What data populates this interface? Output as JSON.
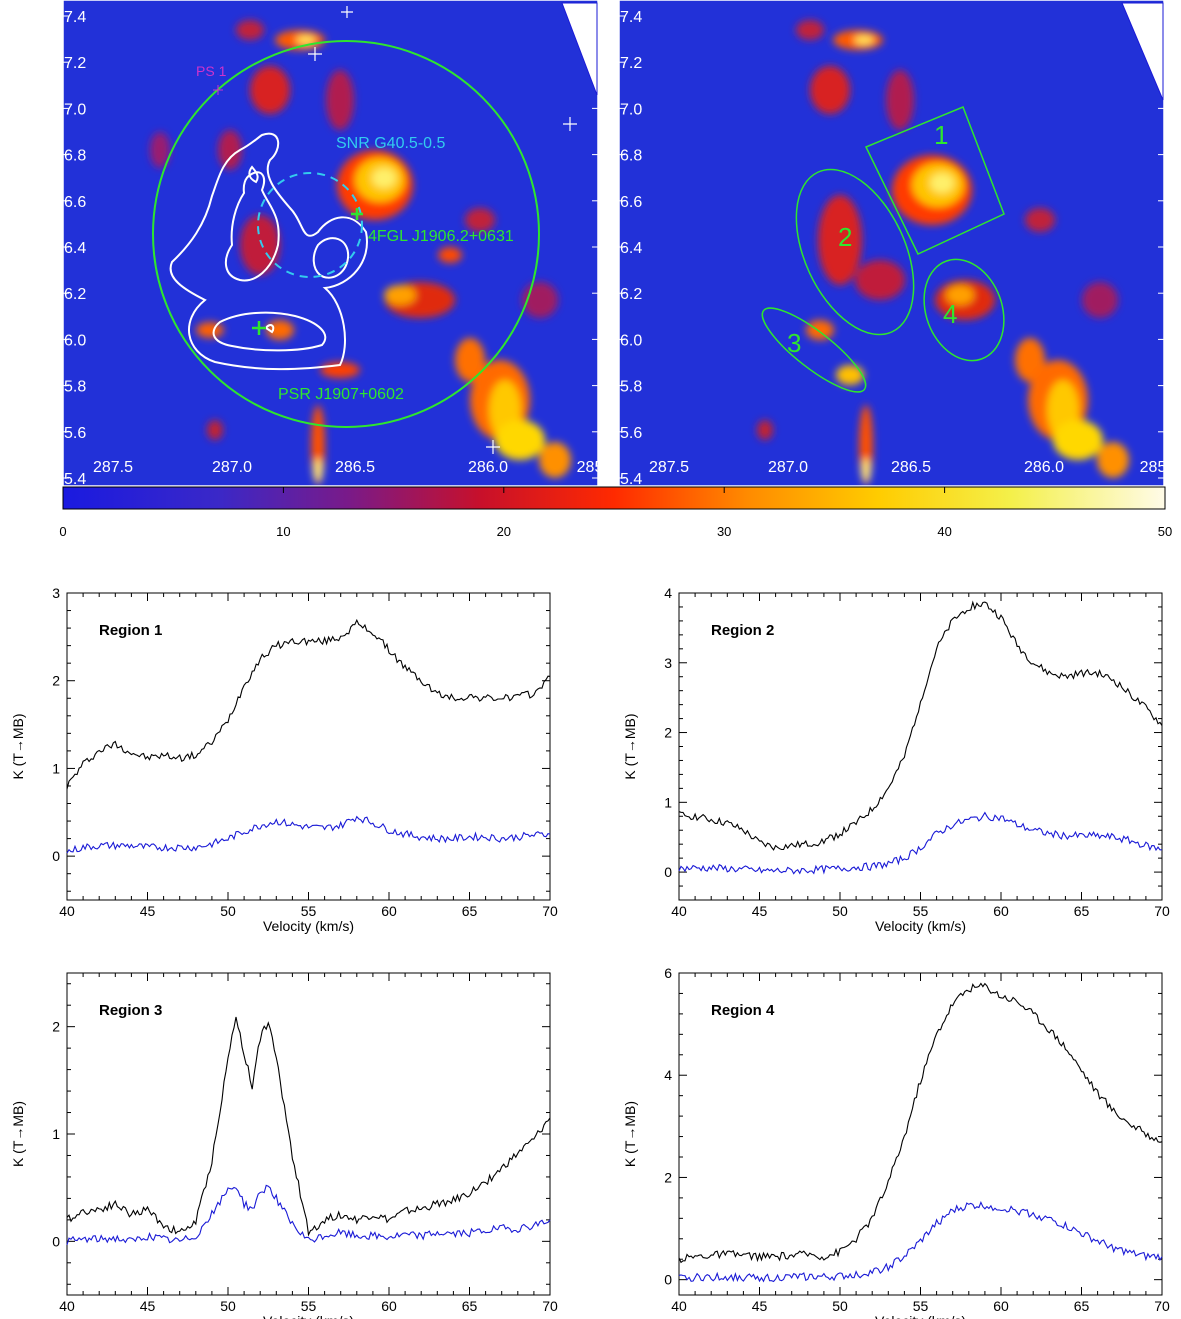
{
  "colors": {
    "map_background": "#2231d8",
    "green_annotation": "#2ee62e",
    "cyan_annotation": "#33ccee",
    "magenta_annotation": "#cc33cc",
    "contour": "#ffffff",
    "line_black": "#000000",
    "line_blue": "#1a1ad6"
  },
  "maps": {
    "left": {
      "y_ticks": [
        "7.4",
        "7.2",
        "7.0",
        "6.8",
        "6.6",
        "6.4",
        "6.2",
        "6.0",
        "5.8",
        "5.6",
        "5.4"
      ],
      "x_ticks": [
        "287.5",
        "287.0",
        "286.5",
        "286.0",
        "285"
      ],
      "labels": {
        "ps1": "PS 1",
        "snr": "SNR G40.5-0.5",
        "fgl": "4FGL J1906.2+0631",
        "psr": "PSR J1907+0602"
      }
    },
    "right": {
      "y_ticks": [
        "7.4",
        "7.2",
        "7.0",
        "6.8",
        "6.6",
        "6.4",
        "6.2",
        "6.0",
        "5.8",
        "5.6",
        "5.4"
      ],
      "x_ticks": [
        "287.5",
        "287.0",
        "286.5",
        "286.0",
        "285"
      ],
      "region_labels": [
        "1",
        "2",
        "3",
        "4"
      ]
    }
  },
  "colorbar": {
    "ticks": [
      "0",
      "10",
      "20",
      "30",
      "40",
      "50"
    ],
    "range": [
      0,
      50
    ]
  },
  "chart_data": [
    {
      "type": "line",
      "title": "Region 1",
      "xlabel": "Velocity (km/s)",
      "ylabel": "K (T→MB)",
      "xlim": [
        40,
        70
      ],
      "ylim": [
        -0.5,
        3
      ],
      "x_ticks": [
        "40",
        "45",
        "50",
        "55",
        "60",
        "65",
        "70"
      ],
      "y_ticks": [
        "0",
        "1",
        "2",
        "3"
      ],
      "series": [
        {
          "color": "#000000",
          "x": [
            40,
            41,
            42,
            43,
            44,
            45,
            46,
            47,
            48,
            49,
            50,
            51,
            52,
            53,
            54,
            55,
            56,
            57,
            58,
            59,
            60,
            61,
            62,
            63,
            64,
            65,
            66,
            67,
            68,
            69,
            70
          ],
          "y": [
            0.8,
            1.05,
            1.2,
            1.28,
            1.18,
            1.12,
            1.15,
            1.12,
            1.15,
            1.3,
            1.55,
            1.95,
            2.25,
            2.4,
            2.45,
            2.45,
            2.45,
            2.5,
            2.65,
            2.55,
            2.35,
            2.15,
            2.0,
            1.85,
            1.8,
            1.82,
            1.8,
            1.8,
            1.82,
            1.85,
            2.05
          ]
        },
        {
          "color": "#1a1ad6",
          "x": [
            40,
            41,
            42,
            43,
            44,
            45,
            46,
            47,
            48,
            49,
            50,
            51,
            52,
            53,
            54,
            55,
            56,
            57,
            58,
            59,
            60,
            61,
            62,
            63,
            64,
            65,
            66,
            67,
            68,
            69,
            70
          ],
          "y": [
            0.05,
            0.1,
            0.12,
            0.12,
            0.12,
            0.1,
            0.1,
            0.1,
            0.1,
            0.14,
            0.2,
            0.28,
            0.35,
            0.4,
            0.36,
            0.33,
            0.32,
            0.35,
            0.45,
            0.38,
            0.3,
            0.25,
            0.22,
            0.2,
            0.2,
            0.22,
            0.22,
            0.2,
            0.22,
            0.24,
            0.25
          ]
        }
      ]
    },
    {
      "type": "line",
      "title": "Region 2",
      "xlabel": "Velocity (km/s)",
      "ylabel": "K (T→MB)",
      "xlim": [
        40,
        70
      ],
      "ylim": [
        -0.4,
        4
      ],
      "x_ticks": [
        "40",
        "45",
        "50",
        "55",
        "60",
        "65",
        "70"
      ],
      "y_ticks": [
        "0",
        "1",
        "2",
        "3",
        "4"
      ],
      "series": [
        {
          "color": "#000000",
          "x": [
            40,
            41,
            42,
            43,
            44,
            45,
            46,
            47,
            48,
            49,
            50,
            51,
            52,
            53,
            54,
            55,
            56,
            57,
            58,
            59,
            60,
            61,
            62,
            63,
            64,
            65,
            66,
            67,
            68,
            69,
            70
          ],
          "y": [
            0.82,
            0.8,
            0.75,
            0.7,
            0.6,
            0.42,
            0.35,
            0.38,
            0.4,
            0.45,
            0.55,
            0.7,
            0.9,
            1.2,
            1.65,
            2.45,
            3.2,
            3.6,
            3.8,
            3.85,
            3.65,
            3.25,
            3.0,
            2.85,
            2.8,
            2.85,
            2.85,
            2.75,
            2.55,
            2.35,
            2.1
          ]
        },
        {
          "color": "#1a1ad6",
          "x": [
            40,
            41,
            42,
            43,
            44,
            45,
            46,
            47,
            48,
            49,
            50,
            51,
            52,
            53,
            54,
            55,
            56,
            57,
            58,
            59,
            60,
            61,
            62,
            63,
            64,
            65,
            66,
            67,
            68,
            69,
            70
          ],
          "y": [
            0.05,
            0.06,
            0.06,
            0.05,
            0.04,
            0.02,
            0.02,
            0.02,
            0.03,
            0.04,
            0.05,
            0.07,
            0.08,
            0.12,
            0.2,
            0.35,
            0.55,
            0.68,
            0.75,
            0.8,
            0.78,
            0.68,
            0.6,
            0.55,
            0.52,
            0.52,
            0.52,
            0.5,
            0.45,
            0.38,
            0.32
          ]
        }
      ]
    },
    {
      "type": "line",
      "title": "Region 3",
      "xlabel": "Velocity (km/s)",
      "ylabel": "K (T→MB)",
      "xlim": [
        40,
        70
      ],
      "ylim": [
        -0.5,
        2.5
      ],
      "x_ticks": [
        "40",
        "45",
        "50",
        "55",
        "60",
        "65",
        "70"
      ],
      "y_ticks": [
        "0",
        "1",
        "2"
      ],
      "series": [
        {
          "color": "#000000",
          "x": [
            40,
            41,
            42,
            43,
            44,
            45,
            46,
            47,
            48,
            49,
            50,
            50.5,
            51,
            51.5,
            52,
            52.5,
            53,
            54,
            55,
            56,
            57,
            58,
            59,
            60,
            61,
            62,
            63,
            64,
            65,
            66,
            67,
            68,
            69,
            70
          ],
          "y": [
            0.2,
            0.28,
            0.3,
            0.35,
            0.25,
            0.3,
            0.15,
            0.08,
            0.18,
            0.75,
            1.7,
            2.1,
            1.75,
            1.45,
            1.9,
            2.05,
            1.7,
            0.8,
            0.08,
            0.2,
            0.25,
            0.2,
            0.25,
            0.2,
            0.28,
            0.3,
            0.35,
            0.38,
            0.45,
            0.55,
            0.68,
            0.82,
            0.95,
            1.15
          ]
        },
        {
          "color": "#1a1ad6",
          "x": [
            40,
            41,
            42,
            43,
            44,
            45,
            46,
            47,
            48,
            49,
            50,
            50.5,
            51,
            51.5,
            52,
            52.5,
            53,
            54,
            55,
            56,
            57,
            58,
            59,
            60,
            61,
            62,
            63,
            64,
            65,
            66,
            67,
            68,
            69,
            70
          ],
          "y": [
            0.0,
            0.02,
            0.02,
            0.03,
            0.0,
            0.05,
            0.02,
            0.0,
            0.05,
            0.25,
            0.48,
            0.52,
            0.35,
            0.3,
            0.45,
            0.52,
            0.4,
            0.15,
            0.0,
            0.05,
            0.08,
            0.05,
            0.05,
            0.04,
            0.06,
            0.05,
            0.08,
            0.07,
            0.08,
            0.1,
            0.12,
            0.12,
            0.15,
            0.2
          ]
        }
      ]
    },
    {
      "type": "line",
      "title": "Region 4",
      "xlabel": "Velocity (km/s)",
      "ylabel": "K (T→MB)",
      "xlim": [
        40,
        70
      ],
      "ylim": [
        -0.3,
        6
      ],
      "x_ticks": [
        "40",
        "45",
        "50",
        "55",
        "60",
        "65",
        "70"
      ],
      "y_ticks": [
        "0",
        "2",
        "4",
        "6"
      ],
      "series": [
        {
          "color": "#000000",
          "x": [
            40,
            41,
            42,
            43,
            44,
            45,
            46,
            47,
            48,
            49,
            50,
            51,
            52,
            53,
            54,
            55,
            56,
            57,
            58,
            59,
            60,
            61,
            62,
            63,
            64,
            65,
            66,
            67,
            68,
            69,
            70
          ],
          "y": [
            0.4,
            0.45,
            0.48,
            0.5,
            0.48,
            0.45,
            0.45,
            0.47,
            0.5,
            0.45,
            0.55,
            0.8,
            1.2,
            1.9,
            2.8,
            3.9,
            4.8,
            5.4,
            5.7,
            5.75,
            5.55,
            5.45,
            5.2,
            4.9,
            4.55,
            4.1,
            3.65,
            3.3,
            3.05,
            2.85,
            2.7
          ]
        },
        {
          "color": "#1a1ad6",
          "x": [
            40,
            41,
            42,
            43,
            44,
            45,
            46,
            47,
            48,
            49,
            50,
            51,
            52,
            53,
            54,
            55,
            56,
            57,
            58,
            59,
            60,
            61,
            62,
            63,
            64,
            65,
            66,
            67,
            68,
            69,
            70
          ],
          "y": [
            0.02,
            0.04,
            0.05,
            0.05,
            0.04,
            0.04,
            0.04,
            0.05,
            0.06,
            0.05,
            0.06,
            0.1,
            0.15,
            0.25,
            0.45,
            0.75,
            1.1,
            1.35,
            1.45,
            1.45,
            1.4,
            1.35,
            1.28,
            1.18,
            1.05,
            0.9,
            0.75,
            0.62,
            0.52,
            0.45,
            0.45
          ]
        }
      ]
    }
  ]
}
